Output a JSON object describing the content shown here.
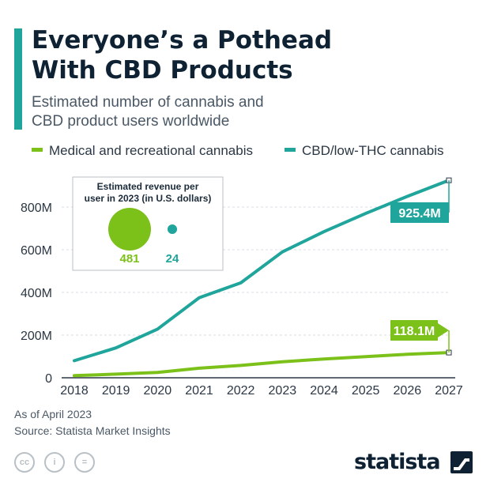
{
  "header": {
    "title_line1": "Everyone’s a Pothead",
    "title_line2": "With CBD Products",
    "subtitle_line1": "Estimated number of cannabis and",
    "subtitle_line2": "CBD product users worldwide"
  },
  "colors": {
    "accent": "#1fa59b",
    "medical_series": "#7cc11a",
    "cbd_series": "#1fa59b",
    "text_dark": "#0e2233",
    "text_muted": "#4a5866"
  },
  "legend": {
    "items": [
      {
        "label": "Medical and recreational cannabis"
      },
      {
        "label": "CBD/low-THC cannabis"
      }
    ]
  },
  "chart_data": {
    "type": "line",
    "categories": [
      "2018",
      "2019",
      "2020",
      "2021",
      "2022",
      "2023",
      "2024",
      "2025",
      "2026",
      "2027"
    ],
    "series": [
      {
        "name": "Medical and recreational cannabis",
        "values": [
          10,
          17,
          25,
          45,
          58,
          75,
          88,
          99,
          110,
          118.1
        ]
      },
      {
        "name": "CBD/low-THC cannabis",
        "values": [
          80,
          140,
          228,
          375,
          445,
          590,
          685,
          770,
          850,
          925.4
        ]
      }
    ],
    "yticks": [
      0,
      200,
      400,
      600,
      800
    ],
    "ytick_labels": [
      "0",
      "200M",
      "400M",
      "600M",
      "800M"
    ],
    "ylim": [
      0,
      1000
    ],
    "xlabel": "",
    "ylabel": "",
    "end_labels": [
      "118.1M",
      "925.4M"
    ],
    "grid": true,
    "inset": {
      "title_line1": "Estimated revenue per",
      "title_line2": "user in 2023 (in U.S. dollars)",
      "items": [
        {
          "series": "Medical and recreational cannabis",
          "value": 481,
          "label": "481"
        },
        {
          "series": "CBD/low-THC cannabis",
          "value": 24,
          "label": "24"
        }
      ]
    }
  },
  "footer": {
    "note": "As of April 2023",
    "source": "Source: Statista Market Insights"
  },
  "license_icons": [
    "cc-icon",
    "person-icon",
    "equals-icon"
  ],
  "license_glyphs": {
    "cc": "cc",
    "by": "i",
    "nd": "="
  },
  "brand": {
    "name": "statista"
  }
}
